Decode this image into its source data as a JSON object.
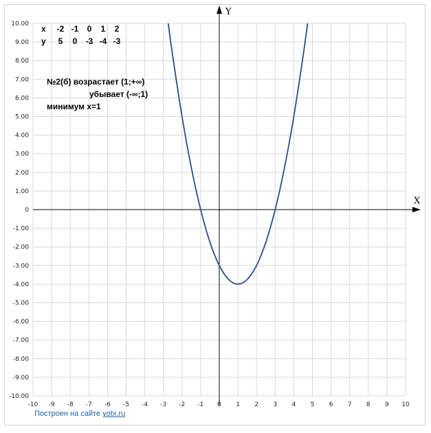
{
  "chart_data": {
    "type": "line",
    "x_axis_label": "X",
    "y_axis_label": "Y",
    "xlim": [
      -10,
      10
    ],
    "ylim": [
      -10,
      10
    ],
    "grid": true,
    "x_ticks": [
      "-10",
      "-9",
      "-8",
      "-7",
      "-6",
      "-5",
      "-4",
      "-3",
      "-2",
      "-1",
      "0",
      "1",
      "2",
      "3",
      "4",
      "5",
      "6",
      "7",
      "8",
      "9",
      "10"
    ],
    "y_ticks": [
      "10.00",
      "9.00",
      "8.00",
      "7.00",
      "6.00",
      "5.00",
      "4.00",
      "3.00",
      "2.00",
      "1.00",
      "0",
      "-1.00",
      "-2.00",
      "-3.00",
      "-4.00",
      "-5.00",
      "-6.00",
      "-7.00",
      "-8.00",
      "-9.00",
      "-10.00"
    ],
    "series": [
      {
        "color": "#2a4d8f",
        "x": [
          -2.8,
          -2.5,
          -2,
          -1.5,
          -1,
          -0.5,
          0,
          0.5,
          1,
          1.5,
          2,
          2.5,
          3,
          3.5,
          4,
          4.5,
          4.8
        ],
        "y": [
          10.44,
          8.25,
          5,
          2.25,
          0,
          -1.75,
          -3,
          -3.75,
          -4,
          -3.75,
          -3,
          -1.75,
          0,
          2.25,
          5,
          8.25,
          10.44
        ]
      }
    ],
    "value_table": {
      "x_label": "x",
      "y_label": "y",
      "x_values": [
        "-2",
        "-1",
        "0",
        "1",
        "2"
      ],
      "y_values": [
        "5",
        "0",
        "-3",
        "-4",
        "-3"
      ]
    },
    "annotations": [
      "№2(б)  возрастает (1;+∞)",
      "убывает (-∞;1)",
      "минимум х=1"
    ]
  },
  "credit": {
    "text": "Построен на сайте",
    "link": "yotx.ru"
  }
}
